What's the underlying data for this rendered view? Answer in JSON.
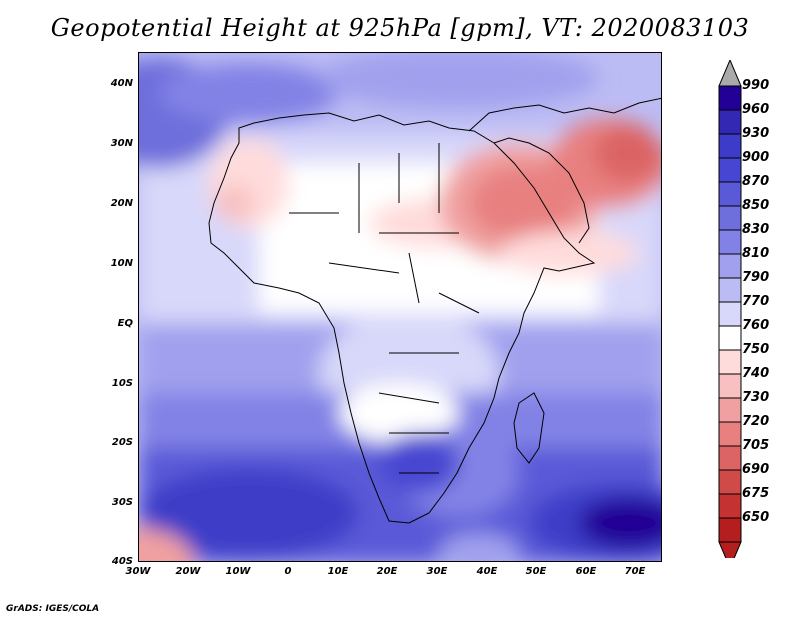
{
  "title": "Geopotential Height at 925hPa [gpm], VT: 2020083103",
  "credit": "GrADS: IGES/COLA",
  "lat_labels": [
    "40N",
    "30N",
    "20N",
    "10N",
    "EQ",
    "10S",
    "20S",
    "30S",
    "40S"
  ],
  "lon_labels": [
    "30W",
    "20W",
    "10W",
    "0",
    "10E",
    "20E",
    "30E",
    "40E",
    "50E",
    "60E",
    "70E"
  ],
  "colorbar": {
    "labels": [
      "990",
      "960",
      "930",
      "900",
      "870",
      "850",
      "830",
      "810",
      "790",
      "770",
      "760",
      "750",
      "740",
      "730",
      "720",
      "705",
      "690",
      "675",
      "650"
    ],
    "colors": [
      "#230095",
      "#3228b4",
      "#3c3cc8",
      "#4646d2",
      "#5a5ad8",
      "#6e6edc",
      "#8282e6",
      "#a0a0ee",
      "#bcbcf4",
      "#d8d8fa",
      "#ffffff",
      "#ffdcdc",
      "#f8c0c0",
      "#f0a0a0",
      "#e88080",
      "#dc6464",
      "#d04a4a",
      "#c43232",
      "#b41e1e"
    ],
    "over_color": "#aaaaaa",
    "under_color": "#b41e1e"
  }
}
